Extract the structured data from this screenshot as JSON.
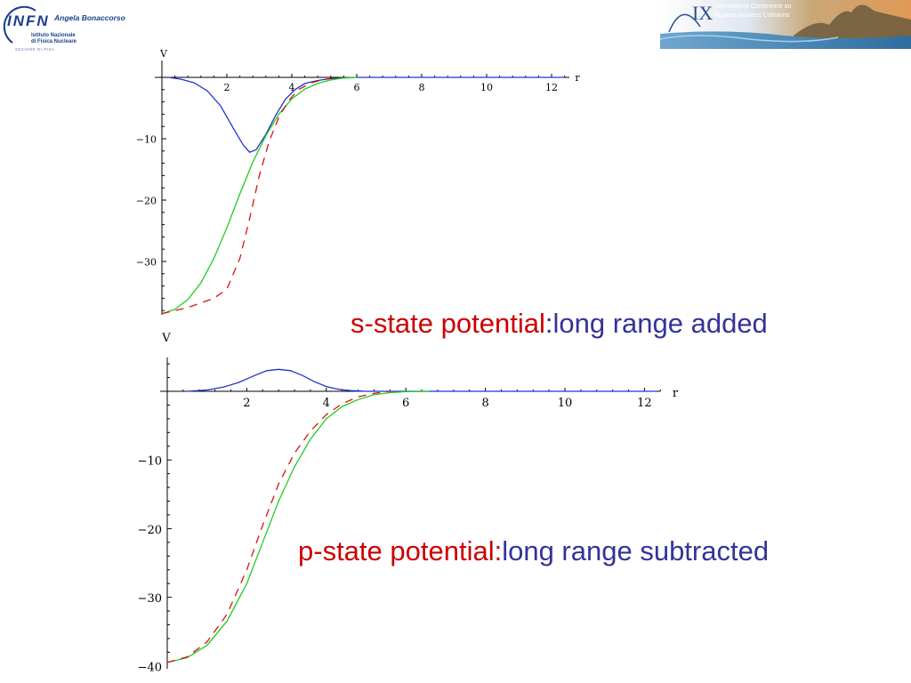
{
  "header": {
    "infn_logo_text": "INFN",
    "author": "Angela Bonaccorso",
    "institute": [
      "Istituto Nazionale",
      "di Fisica Nucleare"
    ],
    "section": "SEZIONE DI PISA",
    "conference_numeral": "IX",
    "conference_lines": [
      "International Conference on",
      "Nucleus Nucleus Collisions"
    ]
  },
  "captions": {
    "s_state_part1": "s-state potential",
    "s_state_part2": ":long range added",
    "p_state_part1": "p-state potential:",
    "p_state_part2": "long range subtracted"
  },
  "colors": {
    "blue": "#2233cc",
    "green": "#22cc22",
    "red": "#dd1111",
    "caption_red": "#cc0000",
    "caption_blue": "#33339a"
  },
  "chart_data": [
    {
      "type": "line",
      "ylabel": "V",
      "xlabel": "r",
      "xlim": [
        0,
        12.5
      ],
      "ylim": [
        -38.5,
        2
      ],
      "x_ticks": [
        2,
        4,
        6,
        8,
        10,
        12
      ],
      "y_ticks": [
        -10,
        -20,
        -30
      ],
      "series": [
        {
          "style": "solid",
          "color": "blue",
          "x": [
            0.2,
            0.6,
            1.0,
            1.4,
            1.8,
            2.2,
            2.5,
            2.7,
            2.9,
            3.2,
            3.5,
            3.8,
            4.1,
            4.4,
            4.8,
            5.2,
            5.6,
            6.0,
            7.0,
            8.0,
            10.0,
            12.0,
            12.4
          ],
          "y": [
            0,
            -0.3,
            -0.9,
            -2.2,
            -4.6,
            -8.3,
            -11.0,
            -12.2,
            -11.8,
            -9.3,
            -6.2,
            -3.6,
            -2.0,
            -1.0,
            -0.5,
            -0.2,
            -0.1,
            0,
            0,
            0,
            0,
            0,
            0
          ]
        },
        {
          "style": "solid",
          "color": "green",
          "x": [
            0.0,
            0.4,
            0.8,
            1.2,
            1.6,
            2.0,
            2.4,
            2.8,
            3.2,
            3.6,
            4.0,
            4.4,
            4.8,
            5.2,
            5.6,
            6.0
          ],
          "y": [
            -38.5,
            -37.8,
            -36.2,
            -33.5,
            -29.5,
            -24.5,
            -19.0,
            -13.8,
            -9.5,
            -6.0,
            -3.5,
            -1.9,
            -1.0,
            -0.4,
            -0.1,
            0
          ]
        },
        {
          "style": "dashed",
          "color": "red",
          "x": [
            0.0,
            0.8,
            1.6,
            2.0,
            2.4,
            2.7,
            3.0,
            3.3,
            3.6,
            3.9,
            4.2,
            4.6,
            5.0,
            5.5
          ],
          "y": [
            -38.5,
            -37.5,
            -36.0,
            -34.5,
            -29.5,
            -23.0,
            -16.0,
            -10.5,
            -6.5,
            -3.8,
            -2.0,
            -0.9,
            -0.3,
            0
          ]
        }
      ]
    },
    {
      "type": "line",
      "ylabel": "V",
      "xlabel": "r",
      "xlim": [
        0,
        12.5
      ],
      "ylim": [
        -40,
        4.5
      ],
      "x_ticks": [
        2,
        4,
        6,
        8,
        10,
        12
      ],
      "y_ticks": [
        -10,
        -20,
        -30,
        -40
      ],
      "series": [
        {
          "style": "solid",
          "color": "blue",
          "x": [
            0.5,
            1.0,
            1.4,
            1.8,
            2.2,
            2.5,
            2.8,
            3.1,
            3.4,
            3.7,
            4.0,
            4.3,
            4.6,
            5.0,
            6.0,
            7.0,
            8.0,
            10.0,
            12.0,
            12.3
          ],
          "y": [
            0,
            0.2,
            0.6,
            1.3,
            2.3,
            3.0,
            3.2,
            3.0,
            2.3,
            1.4,
            0.7,
            0.3,
            0.1,
            0,
            0,
            0,
            0,
            0,
            0,
            0
          ]
        },
        {
          "style": "solid",
          "color": "green",
          "x": [
            0.0,
            0.5,
            1.0,
            1.5,
            2.0,
            2.4,
            2.8,
            3.2,
            3.6,
            4.0,
            4.4,
            4.8,
            5.2,
            5.6,
            6.0,
            6.6
          ],
          "y": [
            -39.5,
            -38.8,
            -37.0,
            -33.5,
            -28.0,
            -22.0,
            -16.0,
            -11.0,
            -7.0,
            -4.0,
            -2.2,
            -1.2,
            -0.5,
            -0.2,
            -0.05,
            0
          ]
        },
        {
          "style": "dashed",
          "color": "red",
          "x": [
            0.0,
            0.5,
            1.0,
            1.5,
            2.0,
            2.4,
            2.8,
            3.2,
            3.6,
            4.0,
            4.4,
            4.8,
            5.2,
            5.6
          ],
          "y": [
            -39.5,
            -38.7,
            -36.5,
            -32.5,
            -26.0,
            -19.5,
            -13.5,
            -9.0,
            -5.8,
            -3.4,
            -1.8,
            -0.8,
            -0.3,
            0
          ]
        }
      ]
    }
  ]
}
